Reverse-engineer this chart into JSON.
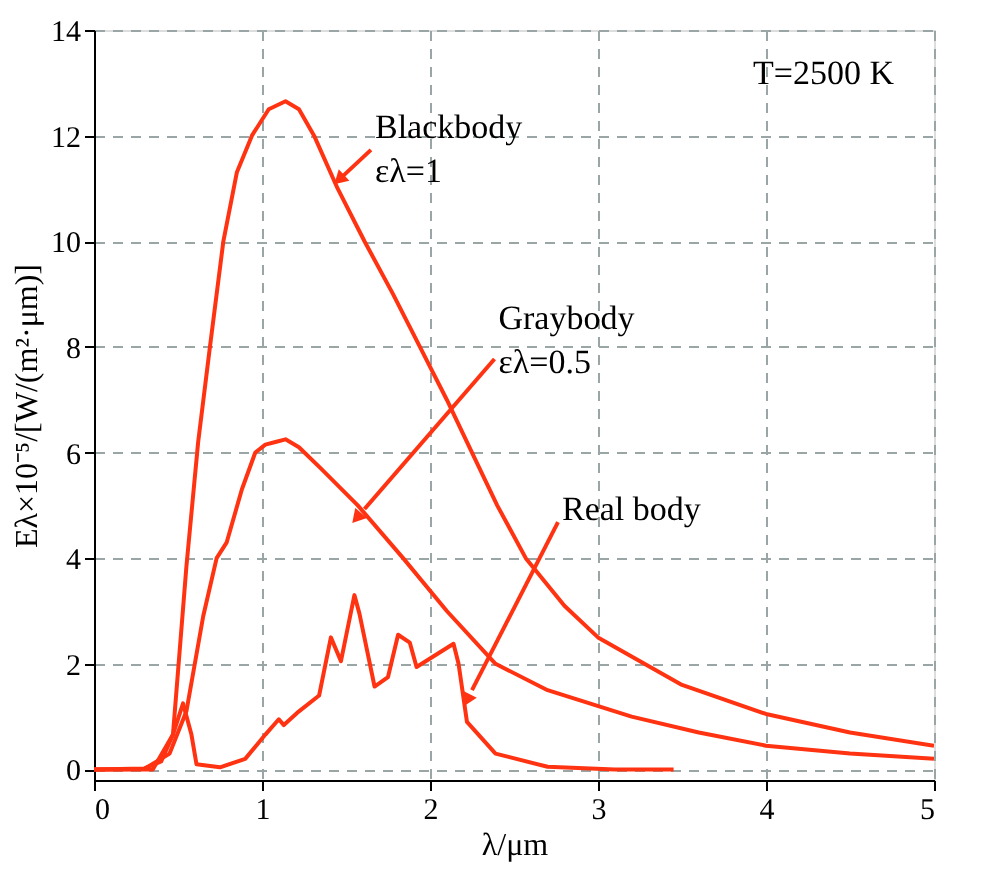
{
  "chart_data": {
    "type": "line",
    "xlabel": "λ/μm",
    "ylabel": "Eλ×10⁻⁵/[W/(m²·μm)]",
    "xlim": [
      0,
      5
    ],
    "xticks": [
      0,
      1,
      2,
      3,
      4,
      5
    ],
    "ylim": [
      -0.2,
      14
    ],
    "yticks": [
      0,
      2,
      4,
      6,
      8,
      10,
      12,
      14
    ],
    "grid": true,
    "line_style": "solid",
    "marker": "none",
    "series": [
      {
        "color": "#ff3311",
        "x": [
          0,
          0.3,
          0.4,
          0.47,
          0.55,
          0.62,
          0.69,
          0.77,
          0.85,
          0.94,
          1.04,
          1.14,
          1.22,
          1.31,
          1.45,
          1.61,
          1.78,
          1.94,
          2.1,
          2.25,
          2.4,
          2.57,
          2.8,
          3.0,
          3.5,
          4.0,
          4.5,
          5.0
        ],
        "values": [
          0,
          0.02,
          0.15,
          0.66,
          3.84,
          6.2,
          8,
          10,
          11.3,
          12,
          12.5,
          12.65,
          12.5,
          12,
          11,
          10,
          9,
          8,
          7,
          6,
          5,
          4,
          3.1,
          2.5,
          1.6,
          1.05,
          0.7,
          0.45
        ]
      },
      {
        "color": "#ff3311",
        "x": [
          0,
          0.3,
          0.45,
          0.55,
          0.65,
          0.73,
          0.79,
          0.88,
          0.96,
          1.02,
          1.08,
          1.14,
          1.22,
          1.35,
          1.57,
          1.84,
          2.1,
          2.39,
          2.7,
          3.2,
          3.6,
          4.0,
          4.5,
          5.0
        ],
        "values": [
          0,
          0.01,
          0.3,
          1.1,
          2.9,
          4,
          4.3,
          5.3,
          6,
          6.15,
          6.2,
          6.25,
          6.1,
          5.7,
          5,
          4,
          3,
          2,
          1.5,
          1,
          0.7,
          0.45,
          0.3,
          0.2
        ]
      },
      {
        "color": "#ff3311",
        "x": [
          0,
          0.35,
          0.47,
          0.53,
          0.58,
          0.61,
          0.75,
          0.9,
          1.02,
          1.1,
          1.13,
          1.22,
          1.34,
          1.41,
          1.47,
          1.55,
          1.58,
          1.67,
          1.75,
          1.81,
          1.88,
          1.92,
          2.14,
          2.17,
          2.22,
          2.39,
          2.7,
          3.1,
          3.45
        ],
        "values": [
          0,
          0,
          0.66,
          1.25,
          0.66,
          0.1,
          0.04,
          0.2,
          0.66,
          0.95,
          0.84,
          1.1,
          1.4,
          2.5,
          2.05,
          3.3,
          2.95,
          1.57,
          1.75,
          2.55,
          2.4,
          1.94,
          2.38,
          2.0,
          0.9,
          0.3,
          0.05,
          0,
          0
        ]
      }
    ],
    "annotations": [
      {
        "text": "Blackbody\nελ=1",
        "x": 1.47,
        "y": 11.2
      },
      {
        "text": "Graybody\nελ=0.5",
        "x": 1.61,
        "y": 4.93
      },
      {
        "text": "Real body",
        "x": 2.25,
        "y": 1.5
      },
      "T=2500 K"
    ]
  }
}
